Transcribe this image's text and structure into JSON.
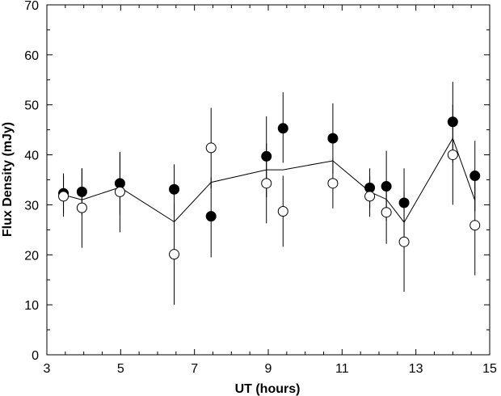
{
  "chart_data": {
    "type": "scatter",
    "title": "",
    "xlabel": "UT (hours)",
    "ylabel": "Flux Density (mJy)",
    "xlim": [
      3,
      15
    ],
    "ylim": [
      0,
      70
    ],
    "xticks": [
      3,
      5,
      7,
      9,
      11,
      13,
      15
    ],
    "yticks": [
      0,
      10,
      20,
      30,
      40,
      50,
      60,
      70
    ],
    "grid": false,
    "legend": "none",
    "series": [
      {
        "marker": "filled-circle",
        "color": "#000000",
        "points": [
          {
            "x": 3.45,
            "y": 32.3,
            "err_low": 28.3,
            "err_high": 36.3
          },
          {
            "x": 3.95,
            "y": 32.6,
            "err_low": 27.9,
            "err_high": 37.3
          },
          {
            "x": 4.98,
            "y": 34.3,
            "err_low": 28.0,
            "err_high": 40.6
          },
          {
            "x": 6.45,
            "y": 33.1,
            "err_low": 27.7,
            "err_high": 38.1
          },
          {
            "x": 7.45,
            "y": 27.7,
            "err_low": 19.5,
            "err_high": 35.5
          },
          {
            "x": 8.95,
            "y": 39.7,
            "err_low": 31.5,
            "err_high": 47.7
          },
          {
            "x": 9.4,
            "y": 45.3,
            "err_low": 38.4,
            "err_high": 52.5
          },
          {
            "x": 10.75,
            "y": 43.3,
            "err_low": 36.2,
            "err_high": 50.3
          },
          {
            "x": 11.75,
            "y": 33.4,
            "err_low": 29.4,
            "err_high": 37.3
          },
          {
            "x": 12.2,
            "y": 33.7,
            "err_low": 26.8,
            "err_high": 40.8
          },
          {
            "x": 12.68,
            "y": 30.4,
            "err_low": 23.7,
            "err_high": 37.3
          },
          {
            "x": 14.0,
            "y": 46.6,
            "err_low": 38.5,
            "err_high": 54.6
          },
          {
            "x": 14.6,
            "y": 35.8,
            "err_low": 28.7,
            "err_high": 42.8
          }
        ]
      },
      {
        "marker": "open-circle",
        "color": "#000000",
        "points": [
          {
            "x": 3.45,
            "y": 31.7,
            "err_low": 27.6,
            "err_high": 35.7
          },
          {
            "x": 3.95,
            "y": 29.4,
            "err_low": 21.4,
            "err_high": 37.3
          },
          {
            "x": 4.98,
            "y": 32.6,
            "err_low": 24.5,
            "err_high": 40.6
          },
          {
            "x": 6.45,
            "y": 20.1,
            "err_low": 10.0,
            "err_high": 30.2
          },
          {
            "x": 7.45,
            "y": 41.4,
            "err_low": 33.3,
            "err_high": 49.4
          },
          {
            "x": 8.95,
            "y": 34.3,
            "err_low": 26.3,
            "err_high": 42.3
          },
          {
            "x": 9.4,
            "y": 28.7,
            "err_low": 21.6,
            "err_high": 35.8
          },
          {
            "x": 10.75,
            "y": 34.3,
            "err_low": 29.3,
            "err_high": 39.3
          },
          {
            "x": 11.75,
            "y": 31.7,
            "err_low": 27.6,
            "err_high": 35.7
          },
          {
            "x": 12.2,
            "y": 28.5,
            "err_low": 22.2,
            "err_high": 34.8
          },
          {
            "x": 12.68,
            "y": 22.6,
            "err_low": 12.6,
            "err_high": 32.6
          },
          {
            "x": 14.0,
            "y": 40.0,
            "err_low": 30.0,
            "err_high": 50.0
          },
          {
            "x": 14.6,
            "y": 25.9,
            "err_low": 15.9,
            "err_high": 35.9
          }
        ]
      },
      {
        "marker": "line",
        "color": "#000000",
        "points": [
          {
            "x": 3.45,
            "y": 32.0
          },
          {
            "x": 3.95,
            "y": 31.0
          },
          {
            "x": 4.98,
            "y": 33.5
          },
          {
            "x": 6.45,
            "y": 26.6
          },
          {
            "x": 7.45,
            "y": 34.5
          },
          {
            "x": 8.95,
            "y": 37.0
          },
          {
            "x": 9.4,
            "y": 37.0
          },
          {
            "x": 10.75,
            "y": 38.8
          },
          {
            "x": 11.75,
            "y": 32.6
          },
          {
            "x": 12.2,
            "y": 31.1
          },
          {
            "x": 12.68,
            "y": 26.5
          },
          {
            "x": 14.0,
            "y": 43.3
          },
          {
            "x": 14.6,
            "y": 30.9
          }
        ]
      }
    ]
  }
}
